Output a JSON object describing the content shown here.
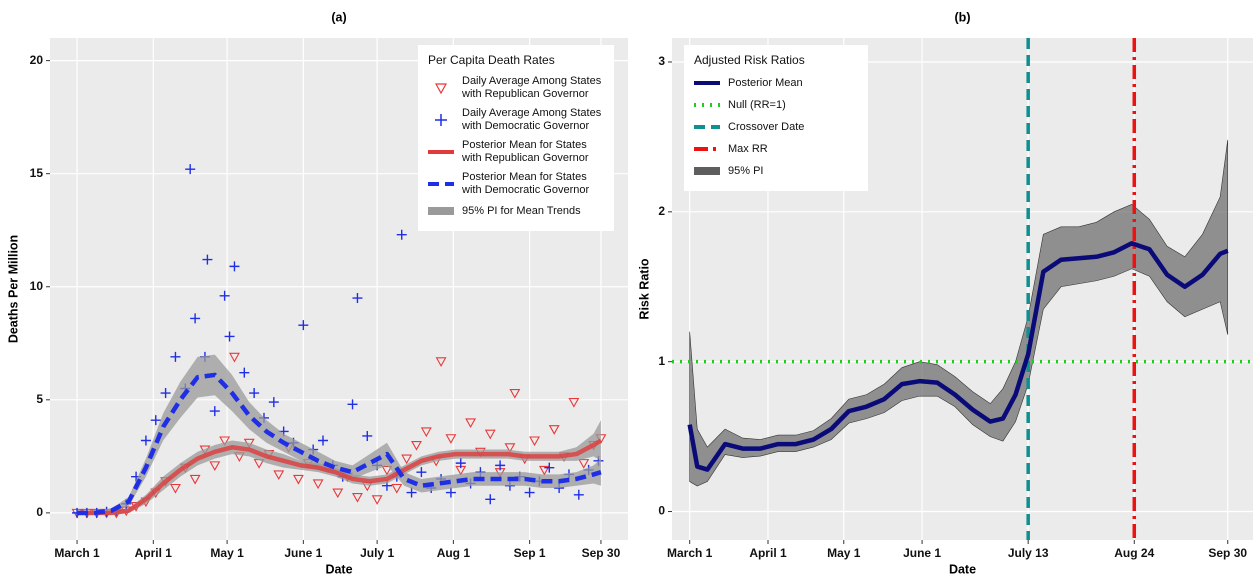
{
  "chart_data": [
    {
      "type": "scatter",
      "title": "(a)",
      "x_label": "Date",
      "y_label": "Deaths Per Million",
      "xlim": [
        -11,
        224
      ],
      "ylim": [
        -1.2,
        21
      ],
      "grid": true,
      "xticks": [
        {
          "value": 0,
          "label": "March 1"
        },
        {
          "value": 31,
          "label": "April 1"
        },
        {
          "value": 61,
          "label": "May 1"
        },
        {
          "value": 92,
          "label": "June 1"
        },
        {
          "value": 122,
          "label": "July 1"
        },
        {
          "value": 153,
          "label": "Aug 1"
        },
        {
          "value": 184,
          "label": "Sep 1"
        },
        {
          "value": 213,
          "label": "Sep 30"
        }
      ],
      "yticks": [
        0,
        5,
        10,
        15,
        20
      ],
      "legend_title": "Per Capita Death Rates",
      "series": [
        {
          "name": "Daily Average Among States with Republican Governor",
          "color": "#e8383a",
          "marker": "triangle",
          "x": [
            0,
            4,
            8,
            12,
            16,
            20,
            24,
            28,
            32,
            36,
            40,
            44,
            48,
            52,
            56,
            60,
            64,
            66,
            70,
            74,
            78,
            82,
            86,
            90,
            94,
            98,
            102,
            106,
            110,
            114,
            118,
            122,
            126,
            130,
            134,
            138,
            142,
            146,
            148,
            152,
            156,
            160,
            164,
            168,
            172,
            176,
            178,
            182,
            186,
            190,
            194,
            198,
            202,
            206,
            210,
            213
          ],
          "values": [
            0,
            0,
            0,
            0,
            0,
            0.1,
            0.3,
            0.5,
            0.9,
            1.4,
            1.1,
            2.0,
            1.5,
            2.8,
            2.1,
            3.2,
            6.9,
            2.5,
            3.1,
            2.2,
            2.6,
            1.7,
            2.9,
            1.5,
            2.2,
            1.3,
            2.0,
            0.9,
            1.6,
            0.7,
            1.2,
            0.6,
            1.9,
            1.1,
            2.4,
            3.0,
            3.6,
            2.3,
            6.7,
            3.3,
            1.9,
            4.0,
            2.7,
            3.5,
            1.8,
            2.9,
            5.3,
            2.4,
            3.2,
            1.9,
            3.7,
            2.5,
            4.9,
            2.2,
            3.0,
            3.3
          ]
        },
        {
          "name": "Daily Average Among States with Democratic Governor",
          "color": "#1f2fe6",
          "marker": "plus",
          "x": [
            0,
            4,
            8,
            12,
            16,
            20,
            24,
            28,
            32,
            36,
            40,
            44,
            46,
            48,
            52,
            53,
            56,
            60,
            62,
            64,
            68,
            72,
            76,
            80,
            84,
            88,
            92,
            96,
            100,
            104,
            108,
            112,
            114,
            118,
            122,
            126,
            130,
            132,
            136,
            140,
            144,
            148,
            152,
            156,
            160,
            164,
            168,
            172,
            176,
            180,
            184,
            188,
            192,
            196,
            200,
            204,
            208,
            212
          ],
          "values": [
            0,
            0,
            0,
            0.05,
            0.1,
            0.4,
            1.6,
            3.2,
            4.1,
            5.3,
            6.9,
            5.5,
            15.2,
            8.6,
            6.9,
            11.2,
            4.5,
            9.6,
            7.8,
            10.9,
            6.2,
            5.3,
            4.2,
            4.9,
            3.6,
            3.1,
            8.3,
            2.8,
            3.2,
            2.1,
            1.6,
            4.8,
            9.5,
            3.4,
            2.1,
            1.2,
            1.6,
            12.3,
            0.9,
            1.8,
            1.1,
            1.5,
            0.9,
            2.2,
            1.3,
            1.8,
            0.6,
            2.1,
            1.2,
            1.6,
            0.9,
            1.4,
            2.0,
            1.1,
            1.7,
            0.8,
            1.9,
            2.3
          ]
        },
        {
          "name": "Posterior Mean for States with Republican Governor",
          "color": "#e03a3a",
          "style": "solid",
          "x": [
            0,
            7,
            14,
            21,
            28,
            35,
            42,
            49,
            56,
            63,
            70,
            77,
            84,
            91,
            98,
            105,
            112,
            119,
            126,
            133,
            140,
            147,
            154,
            161,
            168,
            175,
            182,
            189,
            196,
            203,
            210,
            213
          ],
          "values": [
            0,
            0,
            0,
            0.1,
            0.6,
            1.3,
            1.9,
            2.4,
            2.7,
            2.9,
            2.8,
            2.5,
            2.3,
            2.1,
            2.0,
            1.8,
            1.5,
            1.4,
            1.5,
            1.9,
            2.3,
            2.5,
            2.6,
            2.6,
            2.6,
            2.6,
            2.5,
            2.5,
            2.5,
            2.6,
            3.0,
            3.2
          ],
          "lower": [
            -0.1,
            -0.1,
            -0.1,
            0,
            0.4,
            1.0,
            1.6,
            2.1,
            2.4,
            2.6,
            2.5,
            2.2,
            2.0,
            1.9,
            1.8,
            1.6,
            1.3,
            1.2,
            1.3,
            1.7,
            2.1,
            2.3,
            2.4,
            2.4,
            2.4,
            2.4,
            2.3,
            2.3,
            2.3,
            2.3,
            2.5,
            2.3
          ],
          "upper": [
            0.1,
            0.1,
            0.1,
            0.2,
            0.8,
            1.6,
            2.2,
            2.7,
            3.0,
            3.2,
            3.1,
            2.8,
            2.6,
            2.3,
            2.2,
            2.0,
            1.7,
            1.6,
            1.7,
            2.1,
            2.5,
            2.7,
            2.8,
            2.8,
            2.8,
            2.8,
            2.7,
            2.7,
            2.7,
            2.9,
            3.5,
            4.1
          ]
        },
        {
          "name": "Posterior Mean for States with Democratic Governor",
          "color": "#1f2fe6",
          "style": "dashed",
          "x": [
            0,
            7,
            14,
            21,
            28,
            35,
            42,
            49,
            56,
            63,
            70,
            77,
            84,
            91,
            98,
            105,
            112,
            119,
            126,
            133,
            140,
            147,
            154,
            161,
            168,
            175,
            182,
            189,
            196,
            203,
            210,
            213
          ],
          "values": [
            0,
            0,
            0.1,
            0.5,
            2,
            3.8,
            5.0,
            6.0,
            6.1,
            5.3,
            4.3,
            3.6,
            3.1,
            2.7,
            2.3,
            2.0,
            1.8,
            2.2,
            2.6,
            1.5,
            1.2,
            1.3,
            1.4,
            1.5,
            1.5,
            1.5,
            1.5,
            1.4,
            1.4,
            1.5,
            1.7,
            1.8
          ],
          "lower": [
            -0.1,
            -0.1,
            0,
            0.3,
            1.6,
            3.2,
            4.2,
            5.1,
            5.2,
            4.5,
            3.7,
            3.1,
            2.7,
            2.3,
            1.9,
            1.7,
            1.5,
            1.8,
            2.1,
            1.2,
            0.9,
            1.0,
            1.1,
            1.2,
            1.2,
            1.2,
            1.2,
            1.1,
            1.1,
            1.2,
            1.3,
            1.2
          ],
          "upper": [
            0.1,
            0.1,
            0.2,
            0.7,
            2.4,
            4.4,
            5.8,
            6.9,
            7.0,
            6.1,
            4.9,
            4.1,
            3.5,
            3.1,
            2.7,
            2.3,
            2.1,
            2.6,
            3.1,
            1.8,
            1.5,
            1.6,
            1.7,
            1.8,
            1.8,
            1.8,
            1.8,
            1.7,
            1.7,
            1.8,
            2.1,
            2.4
          ]
        }
      ],
      "band_name": "95% PI for Mean Trends",
      "band_color": "#9a9a9a"
    },
    {
      "type": "line",
      "title": "(b)",
      "x_label": "Date",
      "y_label": "Risk Ratio",
      "xlim": [
        -7,
        223
      ],
      "ylim": [
        -0.19,
        3.16
      ],
      "grid": true,
      "xticks": [
        {
          "value": 0,
          "label": "March 1"
        },
        {
          "value": 31,
          "label": "April 1"
        },
        {
          "value": 61,
          "label": "May 1"
        },
        {
          "value": 92,
          "label": "June 1"
        },
        {
          "value": 134,
          "label": "July 13"
        },
        {
          "value": 176,
          "label": "Aug 24"
        },
        {
          "value": 213,
          "label": "Sep 30"
        }
      ],
      "yticks": [
        0,
        1,
        2,
        3
      ],
      "legend_title": "Adjusted Risk Ratios",
      "series": [
        {
          "name": "Posterior Mean",
          "color": "#0a0a78",
          "style": "solid",
          "x": [
            0,
            3,
            7,
            14,
            21,
            28,
            35,
            42,
            49,
            56,
            63,
            70,
            77,
            84,
            91,
            98,
            105,
            112,
            119,
            124,
            129,
            134,
            140,
            147,
            154,
            161,
            168,
            175,
            182,
            189,
            196,
            203,
            210,
            213
          ],
          "values": [
            0.58,
            0.3,
            0.28,
            0.45,
            0.42,
            0.42,
            0.45,
            0.45,
            0.48,
            0.55,
            0.67,
            0.7,
            0.75,
            0.85,
            0.87,
            0.86,
            0.78,
            0.68,
            0.6,
            0.62,
            0.78,
            1.05,
            1.6,
            1.68,
            1.69,
            1.7,
            1.73,
            1.79,
            1.75,
            1.58,
            1.5,
            1.58,
            1.72,
            1.74
          ],
          "lower": [
            0.2,
            0.17,
            0.2,
            0.38,
            0.36,
            0.37,
            0.4,
            0.4,
            0.43,
            0.48,
            0.59,
            0.62,
            0.66,
            0.74,
            0.77,
            0.77,
            0.7,
            0.58,
            0.5,
            0.47,
            0.6,
            0.85,
            1.35,
            1.5,
            1.52,
            1.54,
            1.57,
            1.62,
            1.57,
            1.4,
            1.3,
            1.35,
            1.4,
            1.18
          ],
          "upper": [
            1.2,
            0.55,
            0.43,
            0.55,
            0.49,
            0.48,
            0.51,
            0.51,
            0.54,
            0.62,
            0.75,
            0.78,
            0.85,
            0.96,
            1.0,
            0.98,
            0.9,
            0.8,
            0.72,
            0.82,
            1.0,
            1.3,
            1.85,
            1.9,
            1.9,
            1.93,
            2.0,
            2.05,
            1.95,
            1.77,
            1.7,
            1.85,
            2.1,
            2.48
          ]
        }
      ],
      "reference_lines": [
        {
          "name": "Null (RR=1)",
          "color": "#1ccf1c",
          "axis": "y",
          "value": 1,
          "style": "dotted"
        },
        {
          "name": "Crossover Date",
          "color": "#0f8f8f",
          "axis": "x",
          "value": 134,
          "style": "dashed"
        },
        {
          "name": "Max RR",
          "color": "#ee1111",
          "axis": "x",
          "value": 176,
          "style": "dashdot"
        }
      ],
      "band_name": "95% PI",
      "band_color": "#5e5e5e"
    }
  ]
}
